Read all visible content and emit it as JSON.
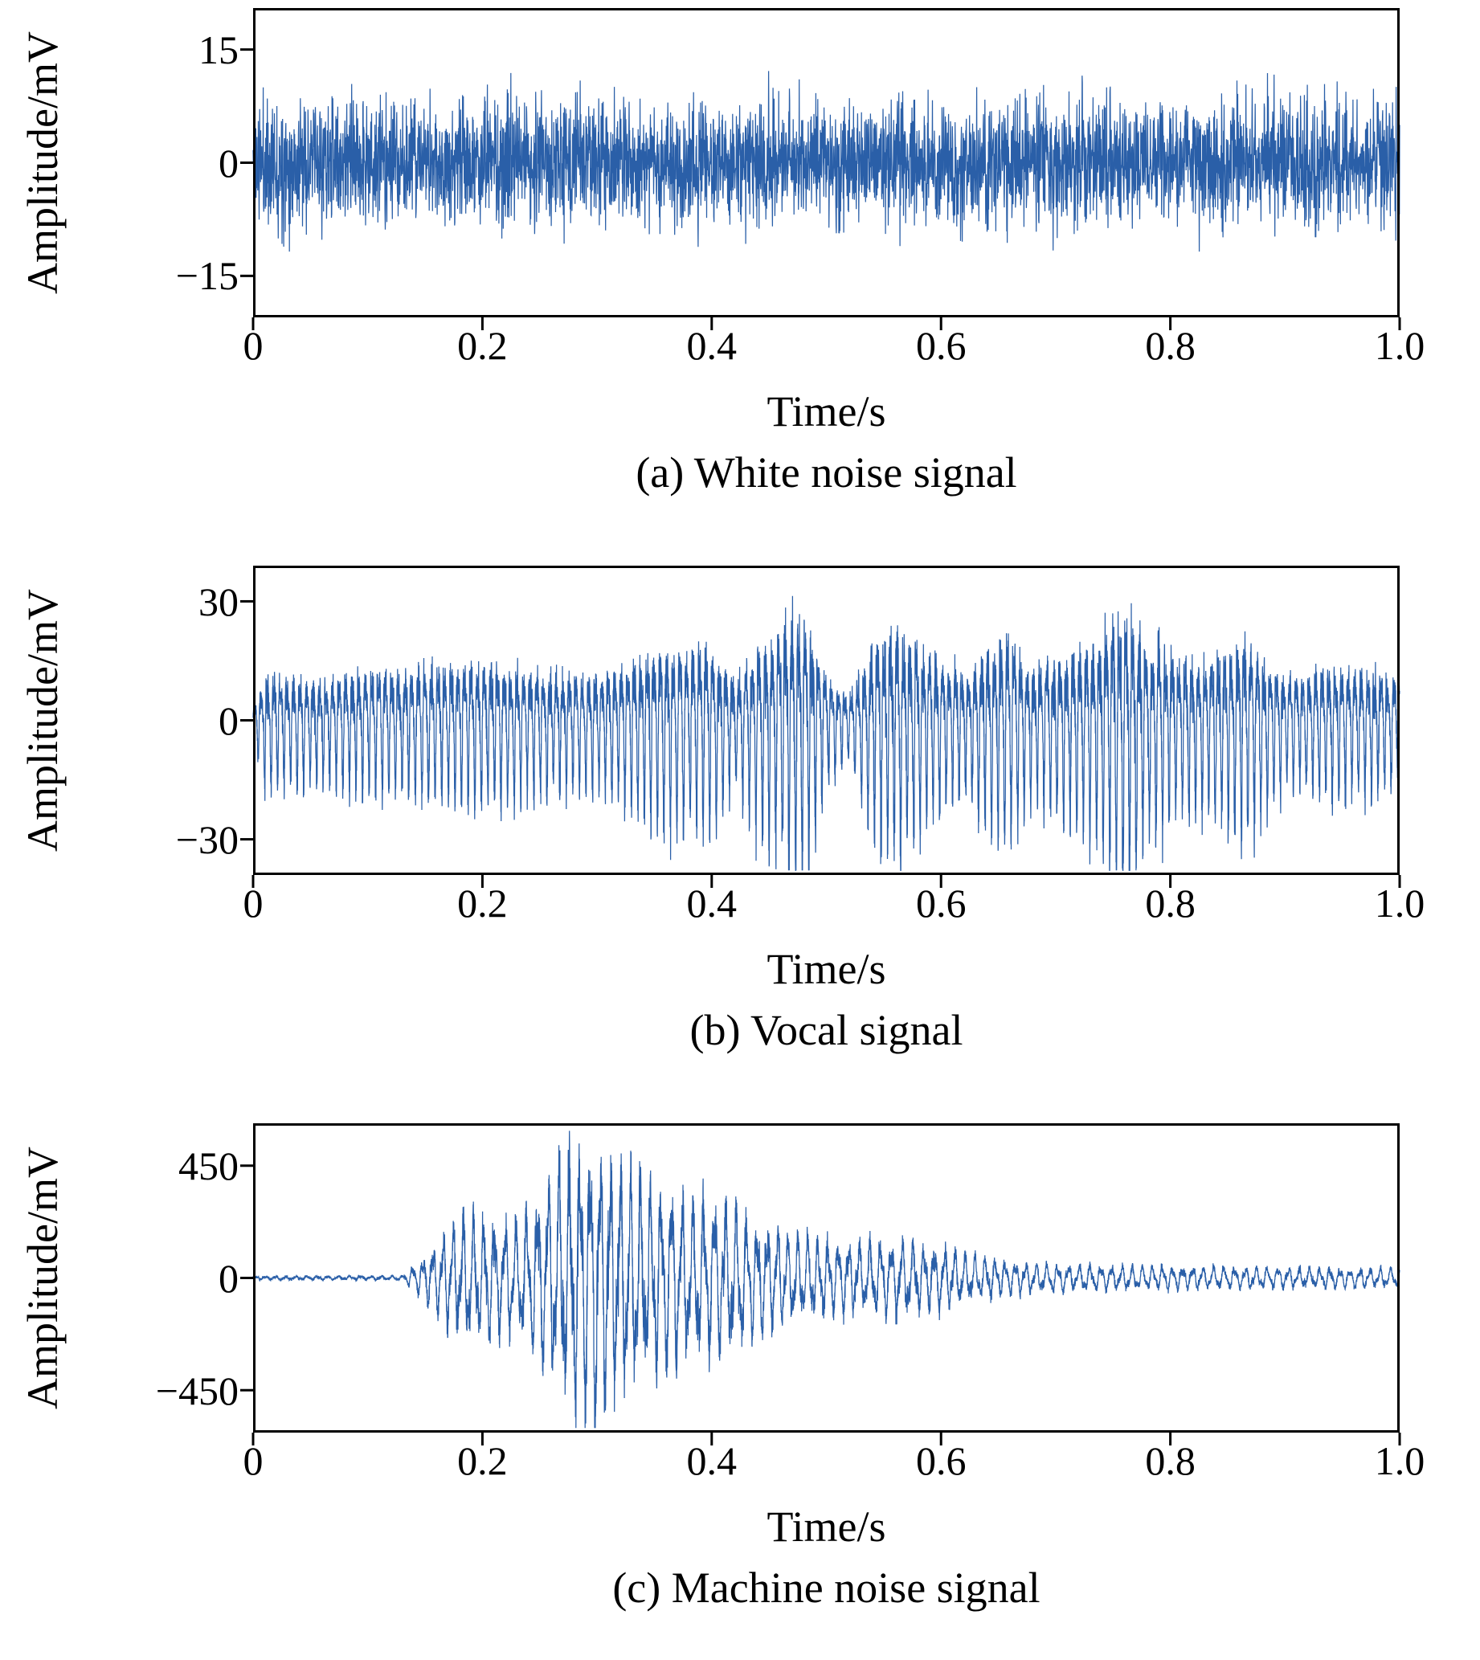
{
  "figure": {
    "line_color": "#2a5fa8",
    "axis_color": "#000000",
    "background": "#ffffff"
  },
  "chart_data": [
    {
      "type": "line",
      "panel": "a",
      "caption": "(a) White noise signal",
      "xlabel": "Time/s",
      "ylabel": "Amplitude/mV",
      "xlim": [
        0,
        1.0
      ],
      "ylim": [
        -20.5,
        20.5
      ],
      "xticks": [
        {
          "v": 0,
          "label": "0"
        },
        {
          "v": 0.2,
          "label": "0.2"
        },
        {
          "v": 0.4,
          "label": "0.4"
        },
        {
          "v": 0.6,
          "label": "0.6"
        },
        {
          "v": 0.8,
          "label": "0.8"
        },
        {
          "v": 1.0,
          "label": "1.0"
        }
      ],
      "yticks": [
        {
          "v": 15,
          "label": "15"
        },
        {
          "v": 0,
          "label": "0"
        },
        {
          "v": -15,
          "label": "−15"
        }
      ],
      "signal": {
        "kind": "white-noise",
        "std_mv": 4.0,
        "peak_mv": 15,
        "points": 4200,
        "seed": 11
      }
    },
    {
      "type": "line",
      "panel": "b",
      "caption": "(b) Vocal signal",
      "xlabel": "Time/s",
      "ylabel": "Amplitude/mV",
      "xlim": [
        0,
        1.0
      ],
      "ylim": [
        -39,
        39
      ],
      "xticks": [
        {
          "v": 0,
          "label": "0"
        },
        {
          "v": 0.2,
          "label": "0.2"
        },
        {
          "v": 0.4,
          "label": "0.4"
        },
        {
          "v": 0.6,
          "label": "0.6"
        },
        {
          "v": 0.8,
          "label": "0.8"
        },
        {
          "v": 1.0,
          "label": "1.0"
        }
      ],
      "yticks": [
        {
          "v": 30,
          "label": "30"
        },
        {
          "v": 0,
          "label": "0"
        },
        {
          "v": -30,
          "label": "−30"
        }
      ],
      "signal": {
        "kind": "vocal",
        "carrier_hz": 175,
        "points": 9000,
        "seed": 23,
        "envelope_mv": [
          [
            0,
            4
          ],
          [
            0.01,
            15
          ],
          [
            0.05,
            14
          ],
          [
            0.1,
            16
          ],
          [
            0.15,
            17
          ],
          [
            0.2,
            19
          ],
          [
            0.25,
            16
          ],
          [
            0.3,
            15
          ],
          [
            0.33,
            20
          ],
          [
            0.36,
            25
          ],
          [
            0.38,
            22
          ],
          [
            0.4,
            26
          ],
          [
            0.42,
            14
          ],
          [
            0.44,
            24
          ],
          [
            0.46,
            30
          ],
          [
            0.48,
            37
          ],
          [
            0.5,
            14
          ],
          [
            0.52,
            8
          ],
          [
            0.54,
            25
          ],
          [
            0.56,
            31
          ],
          [
            0.58,
            25
          ],
          [
            0.6,
            20
          ],
          [
            0.62,
            16
          ],
          [
            0.64,
            24
          ],
          [
            0.66,
            28
          ],
          [
            0.68,
            18
          ],
          [
            0.7,
            20
          ],
          [
            0.72,
            24
          ],
          [
            0.74,
            30
          ],
          [
            0.76,
            37
          ],
          [
            0.78,
            28
          ],
          [
            0.8,
            22
          ],
          [
            0.82,
            20
          ],
          [
            0.84,
            22
          ],
          [
            0.86,
            26
          ],
          [
            0.88,
            22
          ],
          [
            0.9,
            14
          ],
          [
            0.92,
            16
          ],
          [
            0.94,
            18
          ],
          [
            0.96,
            16
          ],
          [
            0.98,
            17
          ],
          [
            1.0,
            14
          ]
        ]
      }
    },
    {
      "type": "line",
      "panel": "c",
      "caption": "(c) Machine noise signal",
      "xlabel": "Time/s",
      "ylabel": "Amplitude/mV",
      "xlim": [
        0,
        1.0
      ],
      "ylim": [
        -620,
        620
      ],
      "xticks": [
        {
          "v": 0,
          "label": "0"
        },
        {
          "v": 0.2,
          "label": "0.2"
        },
        {
          "v": 0.4,
          "label": "0.4"
        },
        {
          "v": 0.6,
          "label": "0.6"
        },
        {
          "v": 0.8,
          "label": "0.8"
        },
        {
          "v": 1.0,
          "label": "1.0"
        }
      ],
      "yticks": [
        {
          "v": 450,
          "label": "450"
        },
        {
          "v": 0,
          "label": "0"
        },
        {
          "v": -450,
          "label": "−450"
        }
      ],
      "signal": {
        "kind": "machine",
        "carrier_hz": 110,
        "tail_hz": 240,
        "floor_mv": 7,
        "points": 9000,
        "seed": 37,
        "envelope_mv": [
          [
            0,
            7
          ],
          [
            0.13,
            8
          ],
          [
            0.15,
            90
          ],
          [
            0.17,
            200
          ],
          [
            0.19,
            260
          ],
          [
            0.21,
            240
          ],
          [
            0.23,
            230
          ],
          [
            0.25,
            340
          ],
          [
            0.27,
            480
          ],
          [
            0.28,
            540
          ],
          [
            0.29,
            520
          ],
          [
            0.3,
            560
          ],
          [
            0.31,
            500
          ],
          [
            0.32,
            460
          ],
          [
            0.33,
            430
          ],
          [
            0.35,
            380
          ],
          [
            0.37,
            330
          ],
          [
            0.39,
            310
          ],
          [
            0.41,
            300
          ],
          [
            0.43,
            260
          ],
          [
            0.45,
            210
          ],
          [
            0.47,
            170
          ],
          [
            0.5,
            150
          ],
          [
            0.53,
            140
          ],
          [
            0.56,
            150
          ],
          [
            0.6,
            130
          ],
          [
            0.63,
            90
          ],
          [
            0.66,
            65
          ],
          [
            0.7,
            55
          ],
          [
            0.75,
            50
          ],
          [
            0.8,
            48
          ],
          [
            0.85,
            45
          ],
          [
            0.9,
            42
          ],
          [
            0.95,
            42
          ],
          [
            1.0,
            38
          ]
        ]
      }
    }
  ]
}
